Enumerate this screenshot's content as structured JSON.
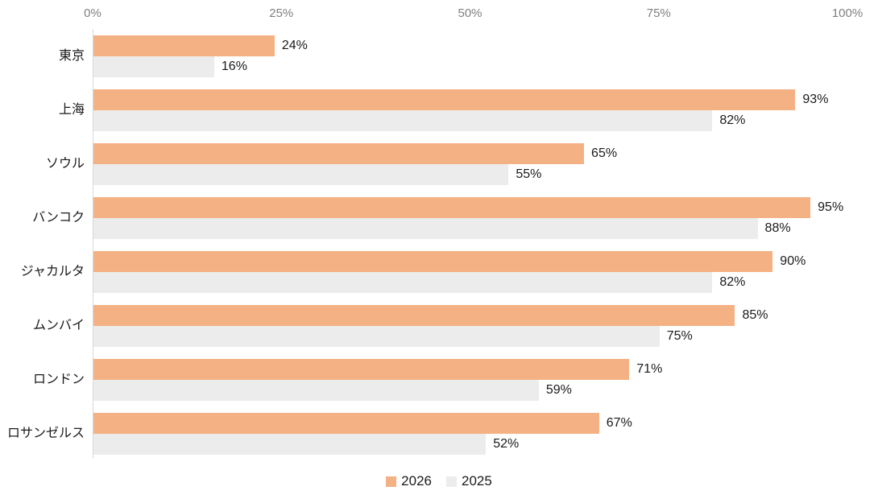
{
  "chart_data": {
    "type": "bar",
    "orientation": "horizontal",
    "title": "",
    "categories": [
      "東京",
      "上海",
      "ソウル",
      "バンコク",
      "ジャカルタ",
      "ムンバイ",
      "ロンドン",
      "ロサンゼルス"
    ],
    "series": [
      {
        "name": "2026",
        "color": "#F4B183",
        "values": [
          24,
          93,
          65,
          95,
          90,
          85,
          71,
          67
        ]
      },
      {
        "name": "2025",
        "color": "#ECECEC",
        "values": [
          16,
          82,
          55,
          88,
          82,
          75,
          59,
          52
        ]
      }
    ],
    "value_suffix": "%",
    "data_labels": true,
    "x_axis": {
      "position": "top",
      "min": 0,
      "max": 100,
      "ticks": [
        "0%",
        "25%",
        "50%",
        "75%",
        "100%"
      ],
      "tick_label_color": "#7F7F7F",
      "axis_line_color": "#D9D9D9"
    },
    "grid": false,
    "legend": {
      "position": "bottom"
    },
    "data_label_color": "#1A1A1A"
  }
}
